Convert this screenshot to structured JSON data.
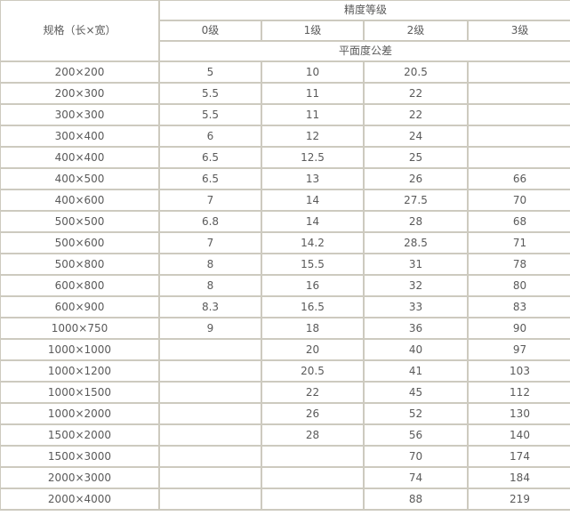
{
  "header": {
    "spec_label": "规格（长×宽）",
    "precision_label": "精度等级",
    "grades": [
      "0级",
      "1级",
      "2级",
      "3级"
    ],
    "tolerance_label": "平面度公差"
  },
  "rows": [
    [
      "200×200",
      "5",
      "10",
      "20.5",
      ""
    ],
    [
      "200×300",
      "5.5",
      "11",
      "22",
      ""
    ],
    [
      "300×300",
      "5.5",
      "11",
      "22",
      ""
    ],
    [
      "300×400",
      "6",
      "12",
      "24",
      ""
    ],
    [
      "400×400",
      "6.5",
      "12.5",
      "25",
      ""
    ],
    [
      "400×500",
      "6.5",
      "13",
      "26",
      "66"
    ],
    [
      "400×600",
      "7",
      "14",
      "27.5",
      "70"
    ],
    [
      "500×500",
      "6.8",
      "14",
      "28",
      "68"
    ],
    [
      "500×600",
      "7",
      "14.2",
      "28.5",
      "71"
    ],
    [
      "500×800",
      "8",
      "15.5",
      "31",
      "78"
    ],
    [
      "600×800",
      "8",
      "16",
      "32",
      "80"
    ],
    [
      "600×900",
      "8.3",
      "16.5",
      "33",
      "83"
    ],
    [
      "1000×750",
      "9",
      "18",
      "36",
      "90"
    ],
    [
      "1000×1000",
      "",
      "20",
      "40",
      "97"
    ],
    [
      "1000×1200",
      "",
      "20.5",
      "41",
      "103"
    ],
    [
      "1000×1500",
      "",
      "22",
      "45",
      "112"
    ],
    [
      "1000×2000",
      "",
      "26",
      "52",
      "130"
    ],
    [
      "1500×2000",
      "",
      "28",
      "56",
      "140"
    ],
    [
      "1500×3000",
      "",
      "",
      "70",
      "174"
    ],
    [
      "2000×3000",
      "",
      "",
      "74",
      "184"
    ],
    [
      "2000×4000",
      "",
      "",
      "88",
      "219"
    ]
  ]
}
